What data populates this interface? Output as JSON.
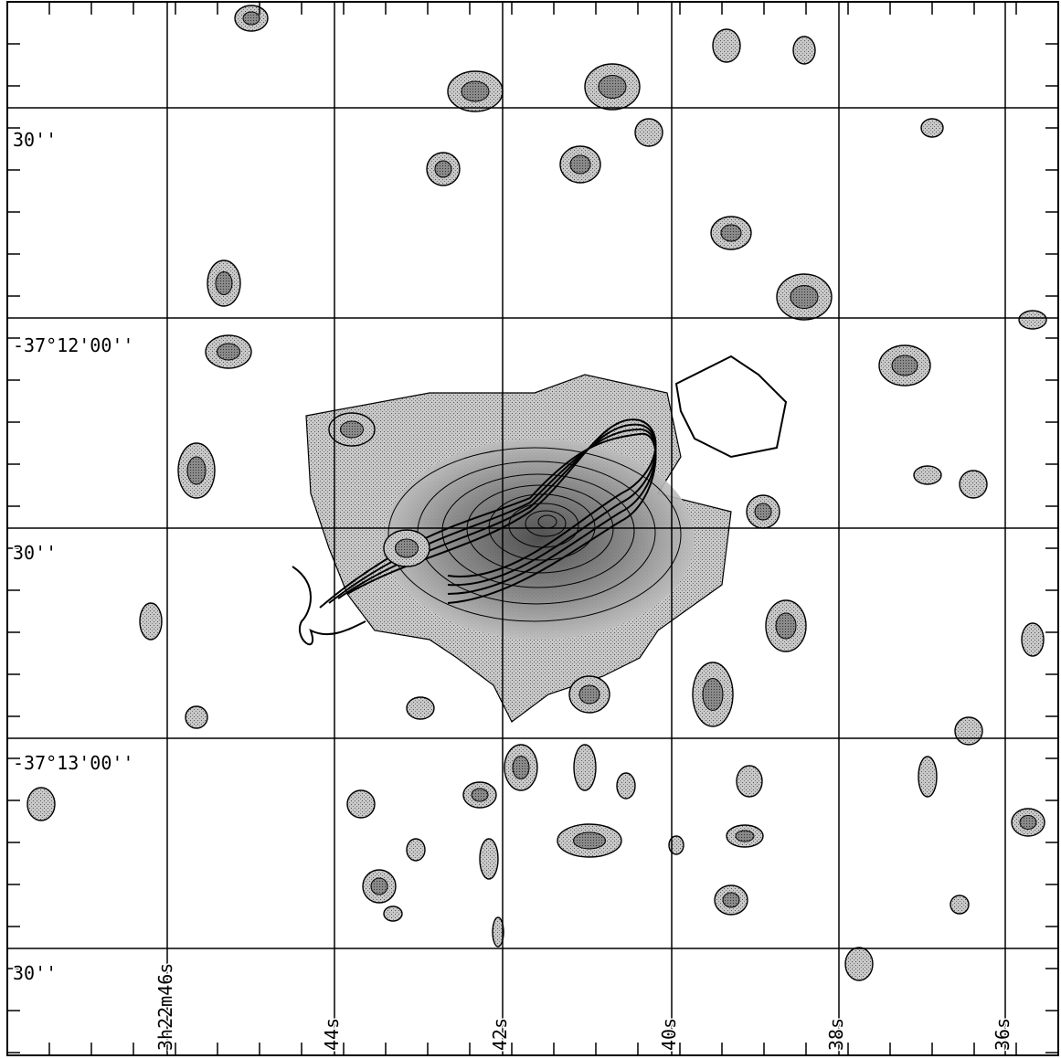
{
  "axes": {
    "dec_labels": [
      "30''",
      "-37°12'00''",
      "30''",
      "-37°13'00''",
      "30''"
    ],
    "ra_labels": [
      "3h22m46s",
      "44s",
      "42s",
      "40s",
      "38s",
      "36s"
    ]
  }
}
